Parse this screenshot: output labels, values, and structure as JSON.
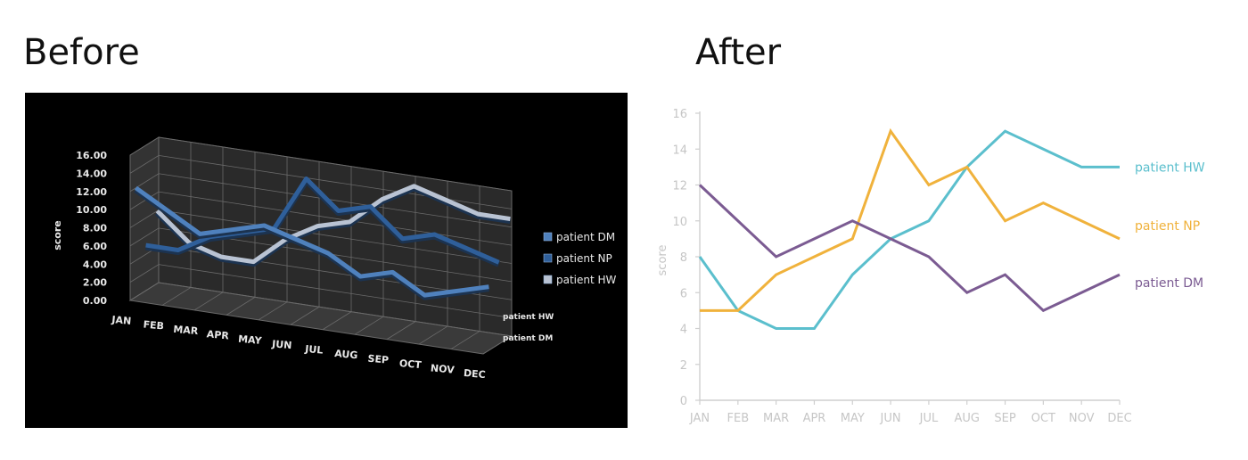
{
  "headings": {
    "before": "Before",
    "after": "After"
  },
  "chart_data": [
    {
      "type": "line",
      "variant": "3d",
      "ylabel": "score",
      "ylim": [
        0,
        16
      ],
      "y_ticks": [
        "0.00",
        "2.00",
        "4.00",
        "6.00",
        "8.00",
        "10.00",
        "12.00",
        "14.00",
        "16.00"
      ],
      "categories": [
        "JAN",
        "FEB",
        "MAR",
        "APR",
        "MAY",
        "JUN",
        "JUL",
        "AUG",
        "SEP",
        "OCT",
        "NOV",
        "DEC"
      ],
      "depth_labels": [
        "patient HW",
        "patient DM"
      ],
      "background": "dark",
      "series": [
        {
          "name": "patient DM",
          "color": "#4f81bd",
          "values": [
            12,
            10,
            8,
            9,
            10,
            9,
            8,
            6,
            7,
            5,
            6,
            7
          ]
        },
        {
          "name": "patient NP",
          "color": "#2f5f9a",
          "values": [
            5,
            5,
            7,
            8,
            9,
            15,
            12,
            13,
            10,
            11,
            10,
            9
          ]
        },
        {
          "name": "patient HW",
          "color": "#b9c3d3",
          "values": [
            8,
            5,
            4,
            4,
            7,
            9,
            10,
            13,
            15,
            14,
            13,
            13
          ]
        }
      ],
      "legend": {
        "position": "right",
        "entries": [
          "patient DM",
          "patient NP",
          "patient HW"
        ]
      },
      "grid": true
    },
    {
      "type": "line",
      "ylabel": "score",
      "ylim": [
        0,
        16
      ],
      "y_ticks": [
        "0",
        "2",
        "4",
        "6",
        "8",
        "10",
        "12",
        "14",
        "16"
      ],
      "categories": [
        "JAN",
        "FEB",
        "MAR",
        "APR",
        "MAY",
        "JUN",
        "JUL",
        "AUG",
        "SEP",
        "OCT",
        "NOV",
        "DEC"
      ],
      "series": [
        {
          "name": "patient HW",
          "color": "#5bbfcd",
          "values": [
            8,
            5,
            4,
            4,
            7,
            9,
            10,
            13,
            15,
            14,
            13,
            13
          ]
        },
        {
          "name": "patient NP",
          "color": "#f0b23c",
          "values": [
            5,
            5,
            7,
            8,
            9,
            15,
            12,
            13,
            10,
            11,
            10,
            9
          ]
        },
        {
          "name": "patient DM",
          "color": "#7b5b92",
          "values": [
            12,
            10,
            8,
            9,
            10,
            9,
            8,
            6,
            7,
            5,
            6,
            7
          ]
        }
      ],
      "legend": {
        "position": "direct labels at line ends"
      },
      "grid": false
    }
  ]
}
